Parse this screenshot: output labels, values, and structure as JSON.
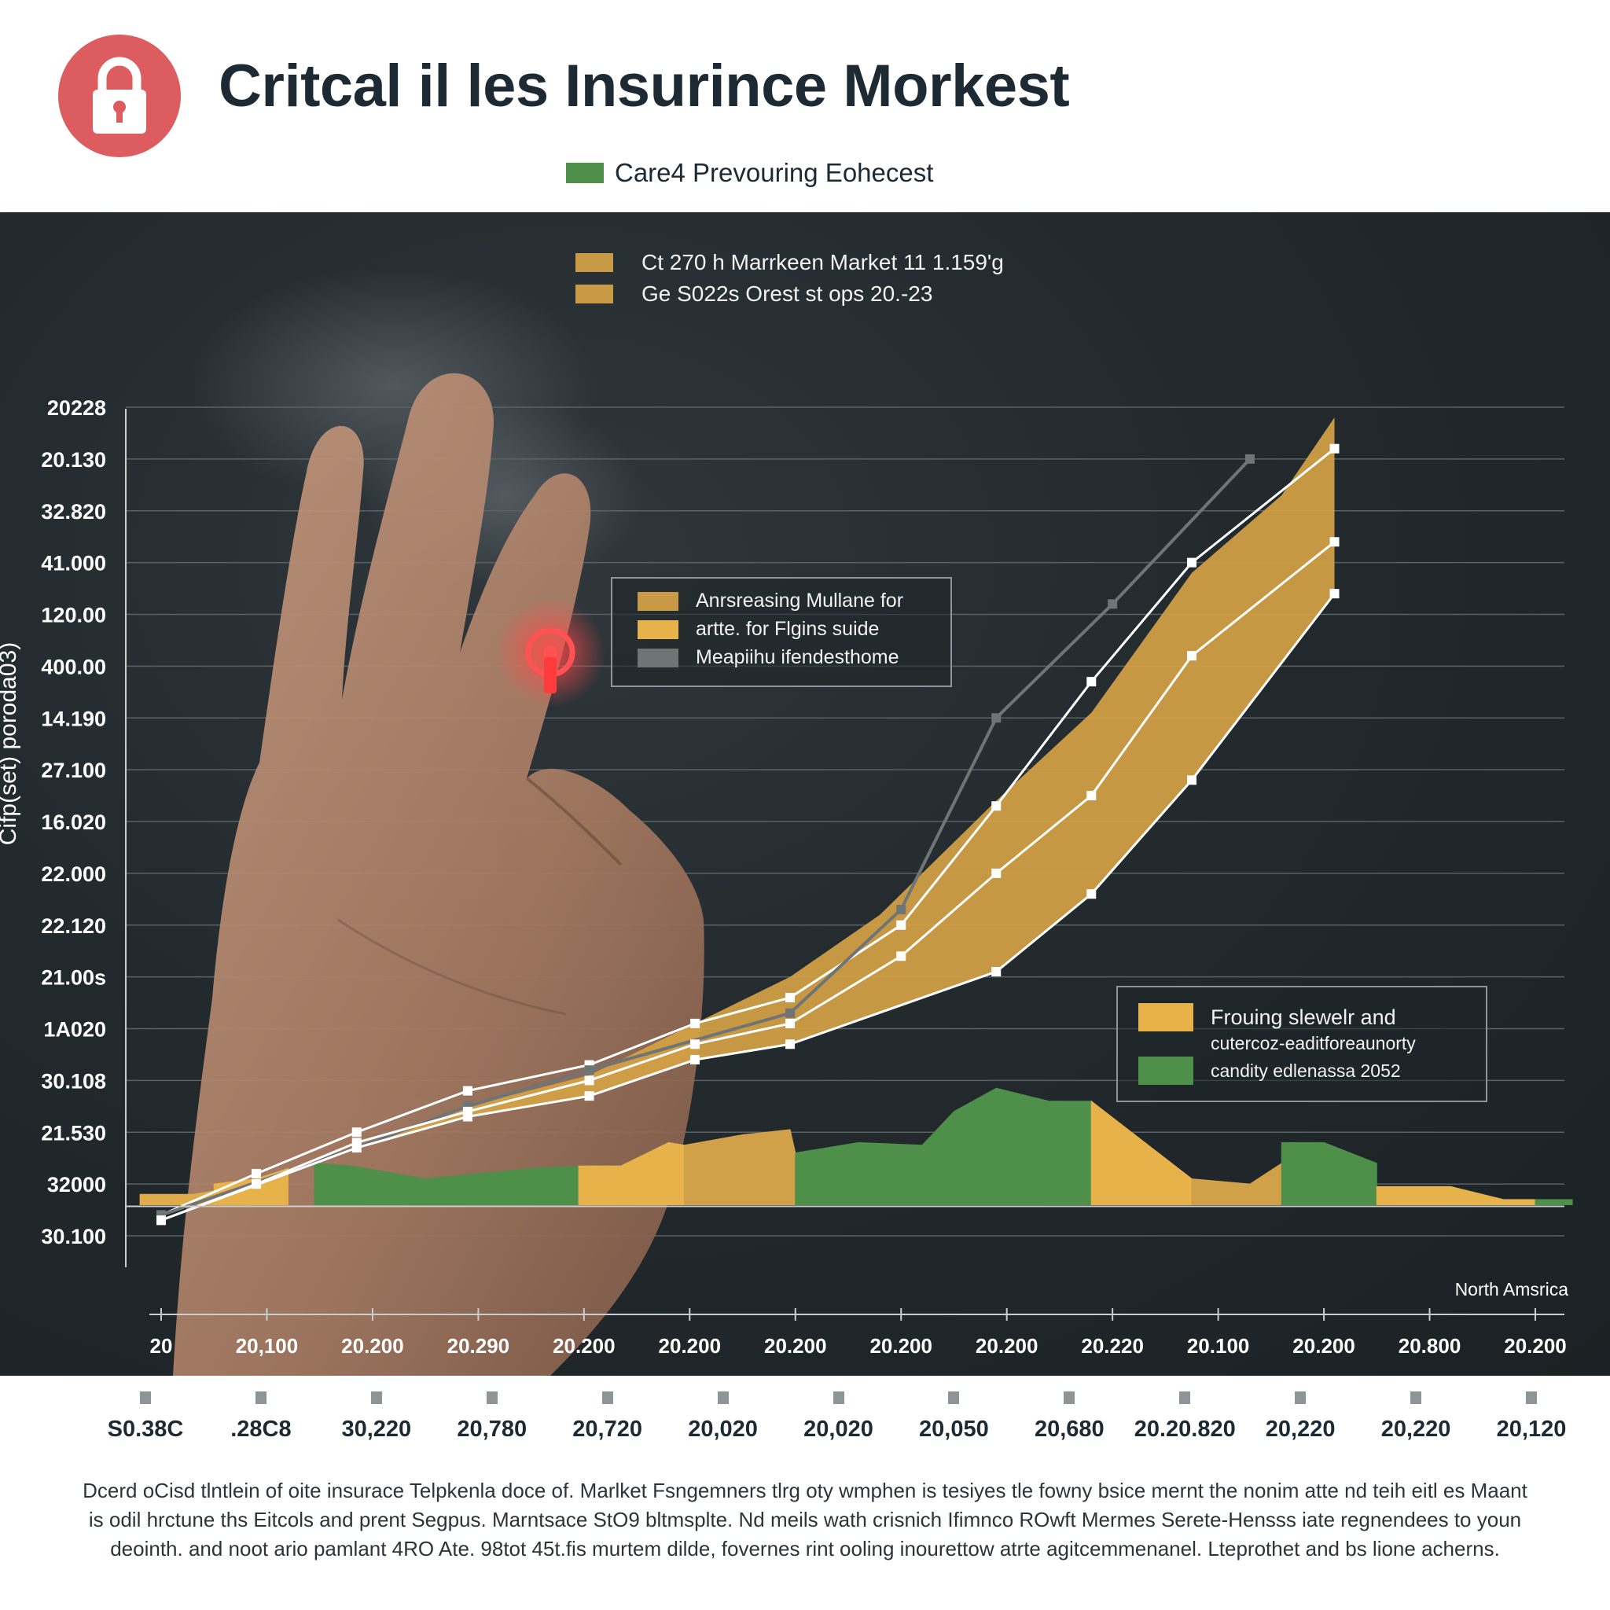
{
  "header": {
    "title": "Critcal il les Insurince Morkest",
    "legend_label": "Care4 Prevouring Eohecest",
    "legend_color": "#4e8f4a",
    "badge_icon": "lock-icon",
    "badge_color": "#dd5c5f"
  },
  "chart_data": {
    "type": "line",
    "ylabel": "Cifp(set) poroda03)",
    "y_tick_labels": [
      "20228",
      "20.130",
      "32.820",
      "41.000",
      "120.00",
      "400.00",
      "14.190",
      "27.100",
      "16.020",
      "22.000",
      "22.120",
      "21.00s",
      "1A020",
      "30.108",
      "21.530",
      "32000",
      "30.100"
    ],
    "x_tick_labels": [
      "20",
      "20,100",
      "20.200",
      "20.290",
      "20.200",
      "20.200",
      "20.200",
      "20.200",
      "20.200",
      "20.220",
      "20.100",
      "20.200",
      "20.800",
      "20.200"
    ],
    "x_region_label": "North Amsrica",
    "lower_tick_labels": [
      "S0.38C",
      ".28C8",
      "30,220",
      "20,780",
      "20,720",
      "20,020",
      "20,020",
      "20,050",
      "20,680",
      "20.20.820",
      "20,220",
      "20,220",
      "20,120"
    ],
    "y_index_range": [
      0,
      16
    ],
    "x_index_range": [
      0,
      13
    ],
    "series": [
      {
        "name": "",
        "kind": "line",
        "color": "#ffffff",
        "x": [
          0,
          0.9,
          1.85,
          2.9,
          4.05,
          5.05,
          5.95,
          7.0,
          7.9,
          8.8,
          9.75,
          11.1
        ],
        "y": [
          15.6,
          14.8,
          14.0,
          13.2,
          12.7,
          11.9,
          11.4,
          10.0,
          7.7,
          5.3,
          3.0,
          0.8
        ]
      },
      {
        "name": "",
        "kind": "line",
        "color": "#6f7477",
        "x": [
          0,
          1.85,
          2.9,
          4.05,
          5.95,
          7.0,
          7.9,
          9.0,
          10.3
        ],
        "y": [
          15.6,
          14.3,
          13.5,
          12.8,
          11.7,
          9.7,
          6.0,
          3.8,
          1.0
        ]
      },
      {
        "name": "",
        "kind": "line",
        "color": "#ffffff",
        "x": [
          0,
          0.9,
          1.85,
          2.9,
          4.05,
          5.05,
          5.95,
          7.0,
          7.9,
          8.8,
          9.75,
          11.1
        ],
        "y": [
          15.7,
          15.0,
          14.2,
          13.6,
          13.0,
          12.3,
          11.9,
          10.6,
          9.0,
          7.5,
          4.8,
          2.6
        ]
      },
      {
        "name": "",
        "kind": "line",
        "color": "#ffffff",
        "x": [
          0,
          1.85,
          2.9,
          4.05,
          5.05,
          5.95,
          7.9,
          8.8,
          9.75,
          11.1
        ],
        "y": [
          15.7,
          14.3,
          13.7,
          13.3,
          12.6,
          12.3,
          10.9,
          9.4,
          7.2,
          3.6
        ]
      }
    ],
    "band": {
      "color": "#d5a245",
      "x": [
        0,
        1.85,
        2.9,
        4.05,
        5.05,
        5.95,
        6.8,
        7.9,
        8.8,
        9.75,
        10.6,
        11.1,
        11.1,
        9.75,
        8.8,
        7.9,
        5.95,
        5.05,
        4.05,
        2.9,
        1.85,
        0
      ],
      "y": [
        15.7,
        14.3,
        13.5,
        12.9,
        11.9,
        11.0,
        9.8,
        7.6,
        5.9,
        3.2,
        1.7,
        0.2,
        3.6,
        7.2,
        9.4,
        10.9,
        12.3,
        12.6,
        13.3,
        13.7,
        14.3,
        15.7
      ]
    },
    "area_segments": {
      "baseline": 15.4,
      "segments": [
        {
          "color": "#e0ac4a",
          "x": [
            -0.2,
            0.3,
            0.9,
            1.2
          ],
          "y": [
            15.2,
            15.2,
            15.0,
            14.8
          ]
        },
        {
          "color": "#e8b24a",
          "x": [
            0.5,
            0.9,
            1.2
          ],
          "y": [
            15.0,
            14.9,
            14.7
          ]
        },
        {
          "color": "#4e8f4a",
          "x": [
            1.45,
            1.8,
            2.5,
            3.5,
            3.95
          ],
          "y": [
            14.6,
            14.65,
            14.9,
            14.7,
            14.65
          ]
        },
        {
          "color": "#e8b24a",
          "x": [
            3.95,
            4.35,
            4.8,
            4.95
          ],
          "y": [
            14.65,
            14.65,
            14.2,
            14.25
          ]
        },
        {
          "color": "#d1a149",
          "x": [
            4.95,
            5.5,
            5.95,
            6.0
          ],
          "y": [
            14.25,
            14.05,
            13.95,
            14.4
          ]
        },
        {
          "color": "#4e8f4a",
          "x": [
            6.0,
            6.6,
            7.2,
            7.5,
            7.9,
            8.4,
            8.8
          ],
          "y": [
            14.4,
            14.2,
            14.25,
            13.6,
            13.15,
            13.4,
            13.4
          ]
        },
        {
          "color": "#e8b24a",
          "x": [
            8.8,
            9.75
          ],
          "y": [
            13.4,
            14.9
          ]
        },
        {
          "color": "#d1a149",
          "x": [
            9.75,
            10.3,
            10.6
          ],
          "y": [
            14.9,
            15.0,
            14.6
          ]
        },
        {
          "color": "#4e8f4a",
          "x": [
            10.6,
            11.0,
            11.5
          ],
          "y": [
            14.2,
            14.2,
            14.6
          ]
        },
        {
          "color": "#e8b24a",
          "x": [
            11.5,
            12.2,
            12.7
          ],
          "y": [
            15.05,
            15.05,
            15.3
          ]
        },
        {
          "color": "#e8b24a",
          "x": [
            12.7,
            13.0
          ],
          "y": [
            15.3,
            15.3
          ]
        },
        {
          "color": "#4e8f4a",
          "x": [
            13.0,
            13.35
          ],
          "y": [
            15.3,
            15.3
          ]
        }
      ]
    },
    "legends": {
      "upper": [
        {
          "label": "Ct 270 h Marrkeen Market 11 1.159'g",
          "color": "#c89a45"
        },
        {
          "label": "Ge S022s Orest st ops 20.-23",
          "color": "#c89a45"
        }
      ],
      "middle": [
        {
          "label": "Anrsreasing Mullane for",
          "color": "#c89a45"
        },
        {
          "label": "artte. for Flgins suide",
          "color": "#e8b24a"
        },
        {
          "label": "Meapiihu ifendesthome",
          "color": "#6f7477"
        }
      ],
      "right": [
        {
          "label": "Frouing slewelr and",
          "color": "#e8b24a"
        },
        {
          "label": "cutercoz-eaditforeaunorty",
          "color": ""
        },
        {
          "label": "candity edlenassa 2052",
          "color": "#4e8f4a"
        }
      ]
    }
  },
  "footer": {
    "description": "Dcerd oCisd tlntlein of oite insurace Telpkenla doce of. Marlket Fsngemners tlrg oty wmphen is tesiyes tle fowny bsice mernt the nonim atte nd teih eitl es Maant is odil hrctune ths Eitcols and prent Segpus. Marntsace StO9 bltmsplte. Nd meils wath crisnich Ifimnco ROwft Mermes Serete-Hensss iate regnendees to youn deointh. and noot ario pamlant 4RO Ate. 98tot 45t.fis murtem dilde, fovernes rint ooling inourettow atrte agitcemmenanel. Lteprothet and bs lione acherns."
  }
}
